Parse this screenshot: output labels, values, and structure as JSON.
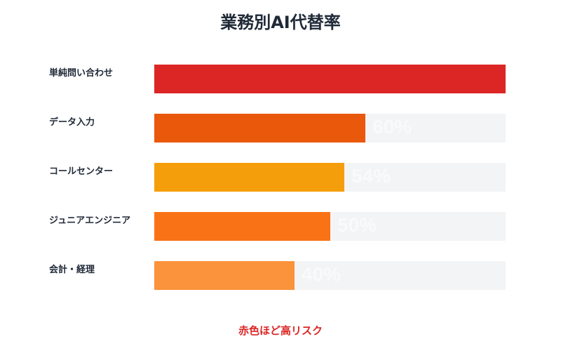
{
  "chart_data": {
    "type": "bar",
    "orientation": "horizontal",
    "title": "業務別AI代替率",
    "categories": [
      "単純問い合わせ",
      "データ入力",
      "コールセンター",
      "ジュニアエンジニア",
      "会計・経理"
    ],
    "values": [
      100,
      60,
      54,
      50,
      40
    ],
    "value_labels": [
      "",
      "60%",
      "54%",
      "50%",
      "40%"
    ],
    "colors": [
      "#dc2626",
      "#ea580c",
      "#f59e0b",
      "#f97316",
      "#fb923c"
    ],
    "xlim": [
      0,
      100
    ],
    "track_color": "#f3f4f6",
    "grid": false,
    "legend": "none",
    "footnote": "赤色ほど高リスク"
  }
}
